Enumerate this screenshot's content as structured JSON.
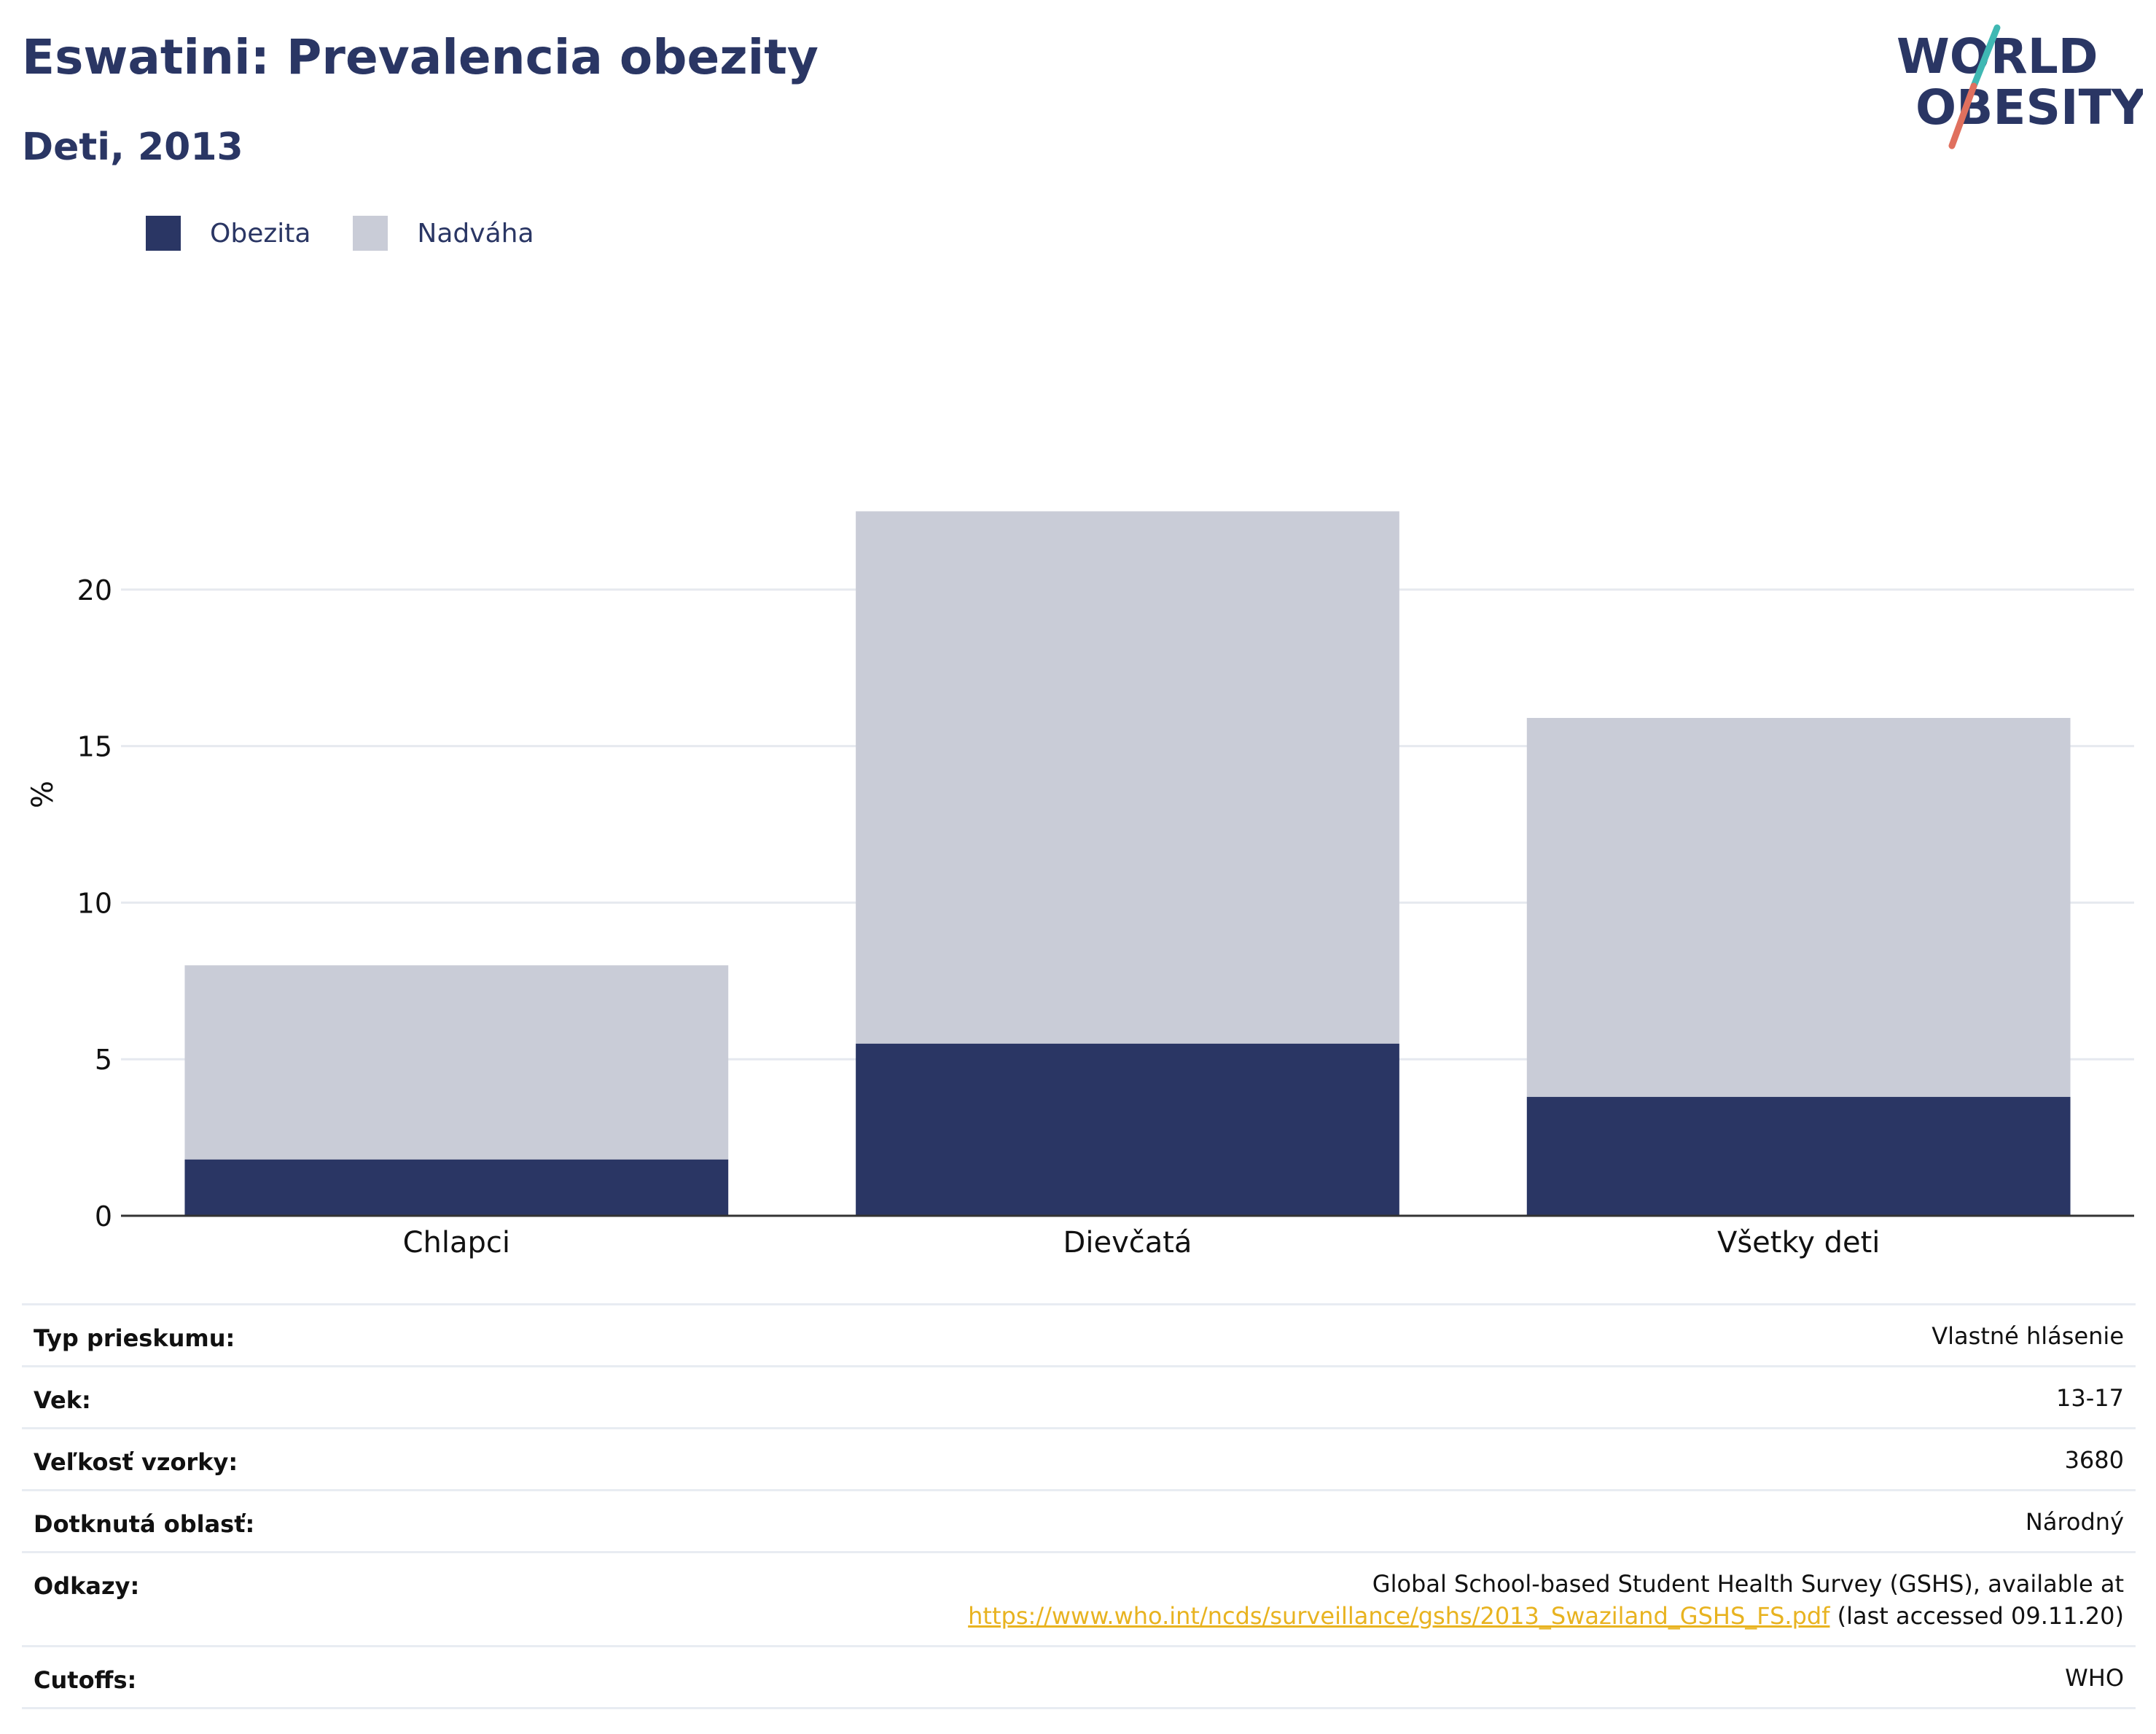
{
  "title": "Eswatini: Prevalencia obezity",
  "subtitle": "Deti, 2013",
  "logo": {
    "line1": "WORLD",
    "line2": "OBESITY",
    "colors": {
      "text": "#2a3664",
      "slash_top": "#3fb8b3",
      "slash_bottom": "#e0705e"
    }
  },
  "legend": [
    {
      "name": "Obezita",
      "color": "#2a3664"
    },
    {
      "name": "Nadváha",
      "color": "#c9ccd7"
    }
  ],
  "chart_data": {
    "type": "bar",
    "stacked": true,
    "categories": [
      "Chlapci",
      "Dievčatá",
      "Všetky deti"
    ],
    "series": [
      {
        "name": "Obezita",
        "color": "#2a3664",
        "values": [
          1.8,
          5.5,
          3.8
        ]
      },
      {
        "name": "Nadváha",
        "color": "#c9ccd7",
        "values": [
          6.2,
          17.0,
          12.1
        ]
      }
    ],
    "ylabel": "%",
    "ylim": [
      0,
      23
    ],
    "yticks": [
      0,
      5,
      10,
      15,
      20
    ],
    "grid": true,
    "legend_position": "top-left"
  },
  "meta": {
    "survey_type": {
      "label": "Typ prieskumu:",
      "value": "Vlastné hlásenie"
    },
    "age": {
      "label": "Vek:",
      "value": "13-17"
    },
    "sample_size": {
      "label": "Veľkosť vzorky:",
      "value": "3680"
    },
    "area": {
      "label": "Dotknutá oblasť:",
      "value": "Národný"
    },
    "references": {
      "label": "Odkazy:",
      "text1": "Global School-based Student Health Survey (GSHS), available at",
      "link": "https://www.who.int/ncds/surveillance/gshs/2013_Swaziland_GSHS_FS.pdf",
      "text2": " (last accessed 09.11.20)"
    },
    "cutoffs": {
      "label": "Cutoffs:",
      "value": "WHO"
    }
  }
}
